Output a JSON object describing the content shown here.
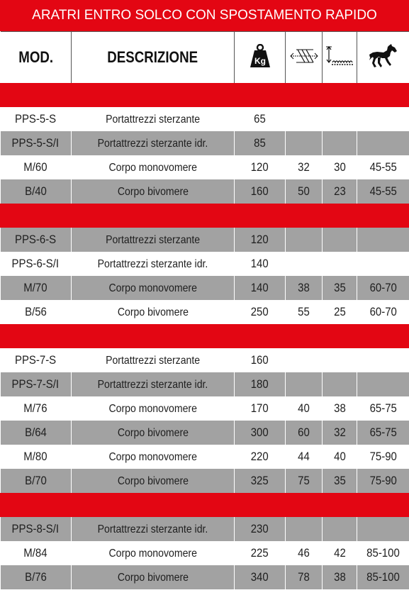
{
  "title": "ARATRI ENTRO SOLCO CON SPOSTAMENTO RAPIDO",
  "headers": {
    "mod": "MOD.",
    "descrizione": "DESCRIZIONE",
    "weight_icon": "weight-kg-icon",
    "weight_icon_text": "Kg",
    "depth_icon": "furrow-width-icon",
    "height_icon": "furrow-depth-icon",
    "horse_icon": "horse-icon"
  },
  "colors": {
    "accent": "#e30613",
    "gray_row": "#a2a2a2",
    "text": "#1e1e1e"
  },
  "groups": [
    {
      "rows": [
        {
          "mod": "PPS-5-S",
          "desc": "Portattrezzi sterzante",
          "kg": "65",
          "c1": "",
          "c2": "",
          "hp": "",
          "shade": "w"
        },
        {
          "mod": "PPS-5-S/I",
          "desc": "Portattrezzi sterzante idr.",
          "kg": "85",
          "c1": "",
          "c2": "",
          "hp": "",
          "shade": "g"
        },
        {
          "mod": "M/60",
          "desc": "Corpo monovomere",
          "kg": "120",
          "c1": "32",
          "c2": "30",
          "hp": "45-55",
          "shade": "w"
        },
        {
          "mod": "B/40",
          "desc": "Corpo bivomere",
          "kg": "160",
          "c1": "50",
          "c2": "23",
          "hp": "45-55",
          "shade": "g"
        }
      ]
    },
    {
      "rows": [
        {
          "mod": "PPS-6-S",
          "desc": "Portattrezzi sterzante",
          "kg": "120",
          "c1": "",
          "c2": "",
          "hp": "",
          "shade": "g"
        },
        {
          "mod": "PPS-6-S/I",
          "desc": "Portattrezzi sterzante idr.",
          "kg": "140",
          "c1": "",
          "c2": "",
          "hp": "",
          "shade": "w"
        },
        {
          "mod": "M/70",
          "desc": "Corpo monovomere",
          "kg": "140",
          "c1": "38",
          "c2": "35",
          "hp": "60-70",
          "shade": "g"
        },
        {
          "mod": "B/56",
          "desc": "Corpo bivomere",
          "kg": "250",
          "c1": "55",
          "c2": "25",
          "hp": "60-70",
          "shade": "w"
        }
      ]
    },
    {
      "rows": [
        {
          "mod": "PPS-7-S",
          "desc": "Portattrezzi sterzante",
          "kg": "160",
          "c1": "",
          "c2": "",
          "hp": "",
          "shade": "w"
        },
        {
          "mod": "PPS-7-S/I",
          "desc": "Portattrezzi sterzante idr.",
          "kg": "180",
          "c1": "",
          "c2": "",
          "hp": "",
          "shade": "g"
        },
        {
          "mod": "M/76",
          "desc": "Corpo monovomere",
          "kg": "170",
          "c1": "40",
          "c2": "38",
          "hp": "65-75",
          "shade": "w"
        },
        {
          "mod": "B/64",
          "desc": "Corpo bivomere",
          "kg": "300",
          "c1": "60",
          "c2": "32",
          "hp": "65-75",
          "shade": "g"
        },
        {
          "mod": "M/80",
          "desc": "Corpo monovomere",
          "kg": "220",
          "c1": "44",
          "c2": "40",
          "hp": "75-90",
          "shade": "w"
        },
        {
          "mod": "B/70",
          "desc": "Corpo bivomere",
          "kg": "325",
          "c1": "75",
          "c2": "35",
          "hp": "75-90",
          "shade": "g"
        }
      ]
    },
    {
      "rows": [
        {
          "mod": "PPS-8-S/I",
          "desc": "Portattrezzi sterzante idr.",
          "kg": "230",
          "c1": "",
          "c2": "",
          "hp": "",
          "shade": "g"
        },
        {
          "mod": "M/84",
          "desc": "Corpo monovomere",
          "kg": "225",
          "c1": "46",
          "c2": "42",
          "hp": "85-100",
          "shade": "w"
        },
        {
          "mod": "B/76",
          "desc": "Corpo bivomere",
          "kg": "340",
          "c1": "78",
          "c2": "38",
          "hp": "85-100",
          "shade": "g"
        }
      ]
    }
  ]
}
